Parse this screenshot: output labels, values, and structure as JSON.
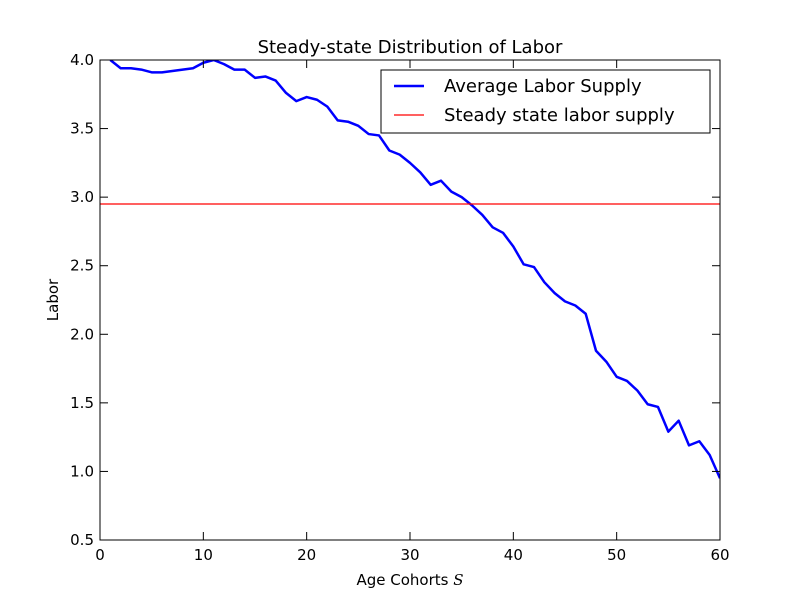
{
  "chart_data": {
    "type": "line",
    "title": "Steady-state Distribution of Labor",
    "xlabel_text": "Age Cohorts ",
    "xlabel_symbol": "S",
    "ylabel": "Labor",
    "xlim": [
      0,
      60
    ],
    "ylim": [
      0.5,
      4.0
    ],
    "xticks": [
      0,
      10,
      20,
      30,
      40,
      50,
      60
    ],
    "xtick_labels": [
      "0",
      "10",
      "20",
      "30",
      "40",
      "50",
      "60"
    ],
    "yticks": [
      0.5,
      1.0,
      1.5,
      2.0,
      2.5,
      3.0,
      3.5,
      4.0
    ],
    "ytick_labels": [
      "0.5",
      "1.0",
      "1.5",
      "2.0",
      "2.5",
      "3.0",
      "3.5",
      "4.0"
    ],
    "grid": false,
    "legend_position": "top-right",
    "series": [
      {
        "name": "Average Labor Supply",
        "color": "#0000ff",
        "x": [
          1,
          2,
          3,
          4,
          5,
          6,
          7,
          8,
          9,
          10,
          11,
          12,
          13,
          14,
          15,
          16,
          17,
          18,
          19,
          20,
          21,
          22,
          23,
          24,
          25,
          26,
          27,
          28,
          29,
          30,
          31,
          32,
          33,
          34,
          35,
          36,
          37,
          38,
          39,
          40,
          41,
          42,
          43,
          44,
          45,
          46,
          47,
          48,
          49,
          50,
          51,
          52,
          53,
          54,
          55,
          56,
          57,
          58,
          59,
          60
        ],
        "values": [
          4.0,
          3.94,
          3.94,
          3.93,
          3.91,
          3.91,
          3.92,
          3.93,
          3.94,
          3.98,
          4.0,
          3.97,
          3.93,
          3.93,
          3.87,
          3.88,
          3.85,
          3.76,
          3.7,
          3.73,
          3.71,
          3.66,
          3.56,
          3.55,
          3.52,
          3.46,
          3.45,
          3.34,
          3.31,
          3.25,
          3.18,
          3.09,
          3.12,
          3.04,
          3.0,
          2.94,
          2.87,
          2.78,
          2.74,
          2.64,
          2.51,
          2.49,
          2.38,
          2.3,
          2.24,
          2.21,
          2.15,
          1.88,
          1.8,
          1.69,
          1.66,
          1.59,
          1.49,
          1.47,
          1.29,
          1.37,
          1.19,
          1.22,
          1.12,
          0.95
        ]
      },
      {
        "name": "Steady state labor supply",
        "color": "#ff0000",
        "type": "hline",
        "value": 2.95
      }
    ]
  }
}
